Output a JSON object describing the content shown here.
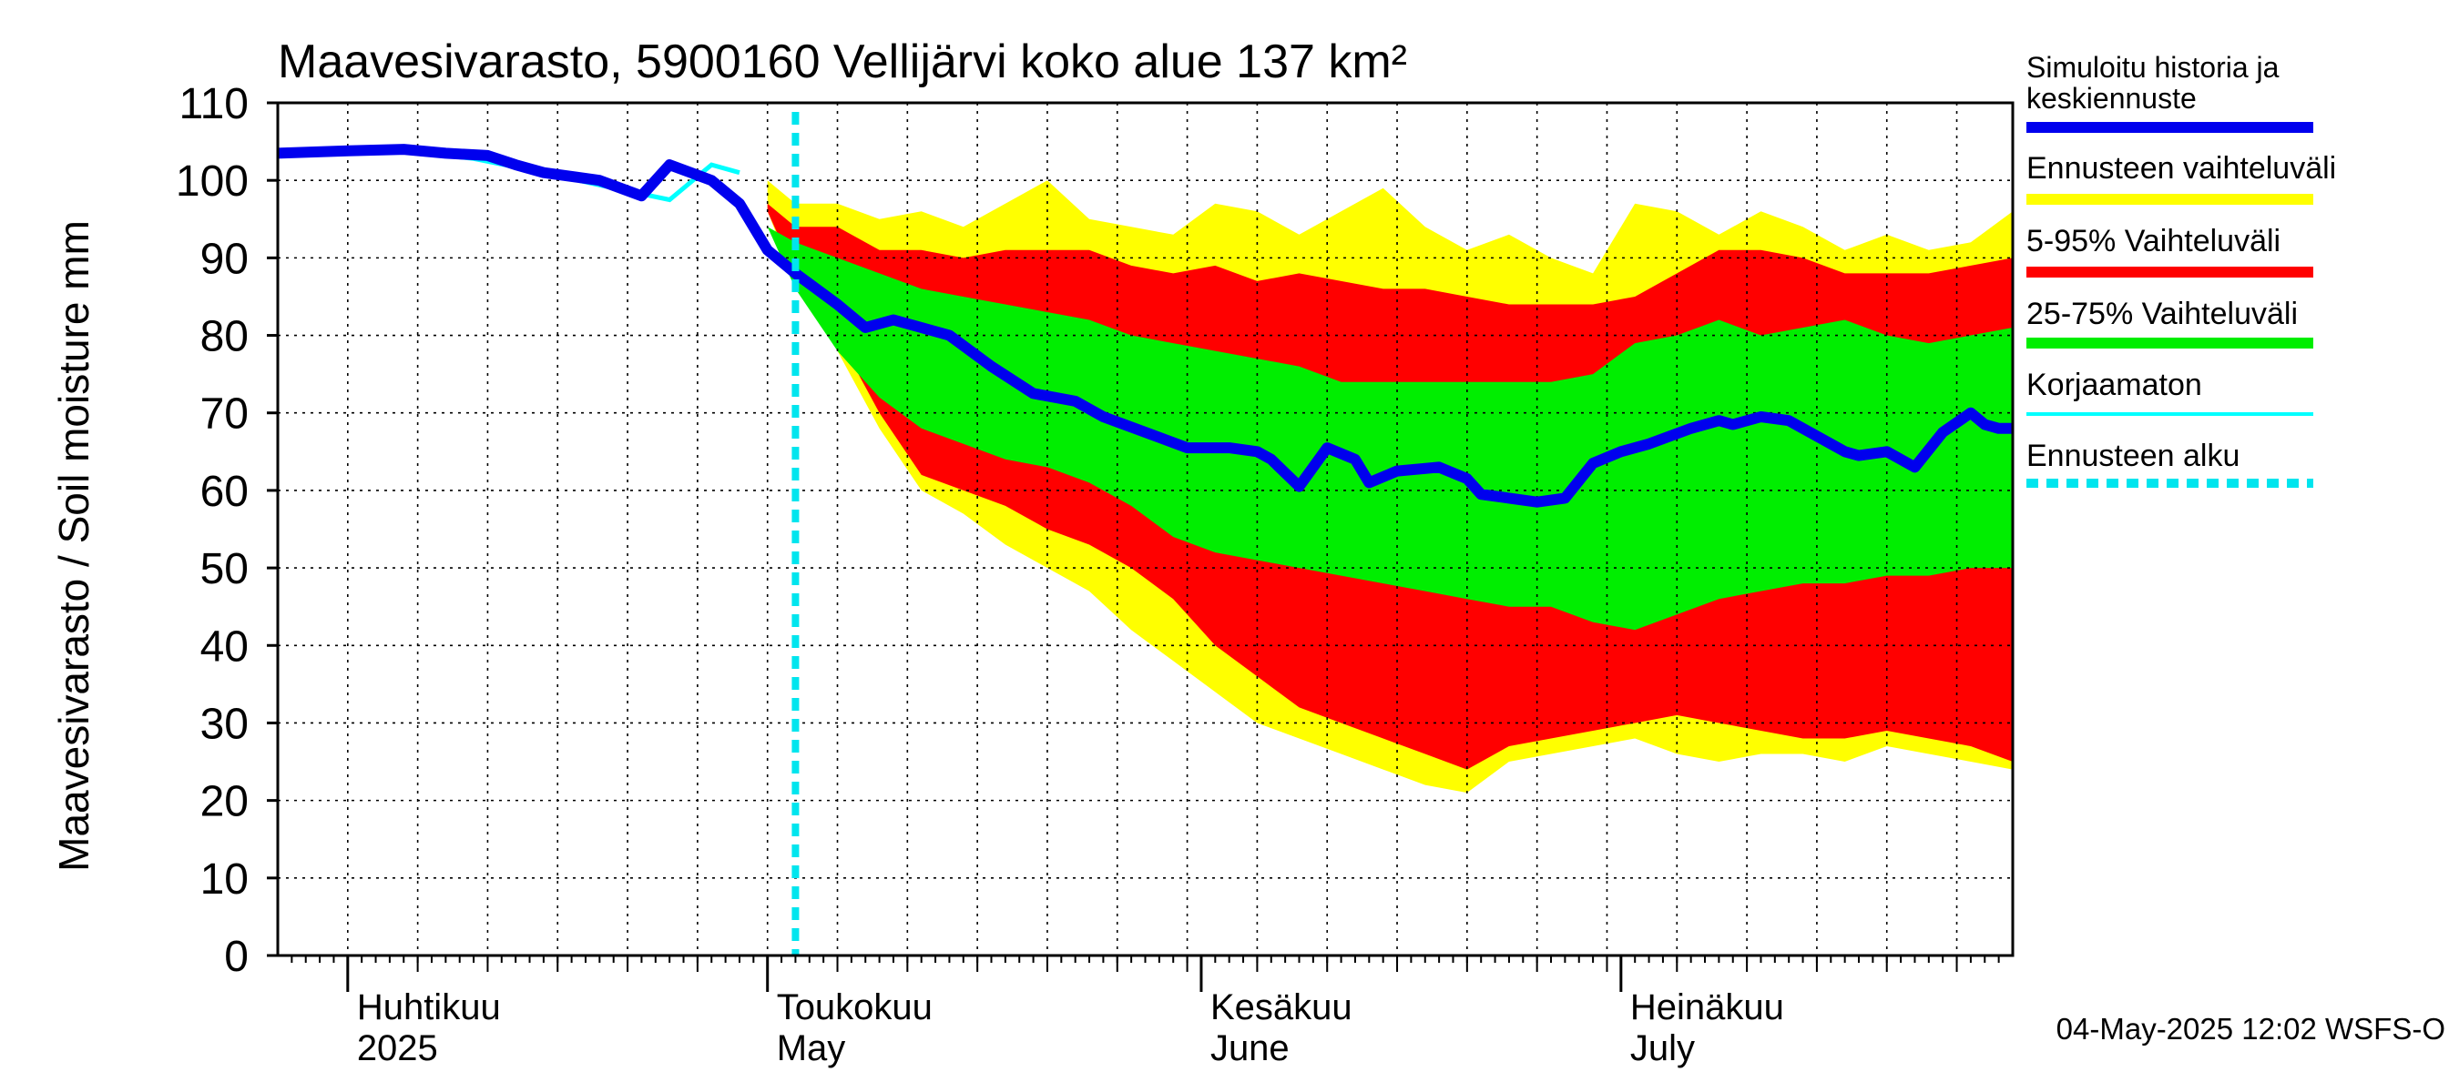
{
  "chart_data": {
    "type": "area",
    "title": "Maavesivarasto, 5900160 Vellijärvi koko alue 137 km²",
    "ylabel": "Maavesivarasto / Soil moisture   mm",
    "xlabel": "",
    "ylim": [
      0,
      110
    ],
    "yticks": [
      0,
      10,
      20,
      30,
      40,
      50,
      60,
      70,
      80,
      90,
      100,
      110
    ],
    "xlim": [
      "2025-03-27",
      "2025-07-29"
    ],
    "grid": true,
    "legend_position": "right",
    "x_month_labels": [
      {
        "date": "2025-04-01",
        "fi": "Huhtikuu",
        "en": "2025"
      },
      {
        "date": "2025-05-01",
        "fi": "Toukokuu",
        "en": "May"
      },
      {
        "date": "2025-06-01",
        "fi": "Kesäkuu",
        "en": "June"
      },
      {
        "date": "2025-07-01",
        "fi": "Heinäkuu",
        "en": "July"
      }
    ],
    "forecast_start": "2025-05-03",
    "timestamp": "04-May-2025 12:02 WSFS-O",
    "colors": {
      "full_range": "#ffff00",
      "p5_95": "#ff0000",
      "p25_75": "#00ee00",
      "median": "#0000ee",
      "uncorrected": "#00ffff",
      "forecast_start": "#00e5ee",
      "grid": "#000000"
    },
    "legend": [
      {
        "label": "Simuloitu historia ja keskiennuste",
        "key": "median"
      },
      {
        "label": "Ennusteen vaihteluväli",
        "key": "full_range"
      },
      {
        "label": "5-95% Vaihteluväli",
        "key": "p5_95"
      },
      {
        "label": "25-75% Vaihteluväli",
        "key": "p25_75"
      },
      {
        "label": "Korjaamaton",
        "key": "uncorrected"
      },
      {
        "label": "Ennusteen alku",
        "key": "forecast_start"
      }
    ],
    "series": [
      {
        "name": "Simuloitu historia ja keskiennuste",
        "x": [
          "2025-03-27",
          "2025-04-01",
          "2025-04-05",
          "2025-04-08",
          "2025-04-11",
          "2025-04-13",
          "2025-04-15",
          "2025-04-19",
          "2025-04-22",
          "2025-04-24",
          "2025-04-27",
          "2025-04-29",
          "2025-05-01",
          "2025-05-03",
          "2025-05-06",
          "2025-05-08",
          "2025-05-10",
          "2025-05-12",
          "2025-05-14",
          "2025-05-17",
          "2025-05-20",
          "2025-05-23",
          "2025-05-25",
          "2025-05-28",
          "2025-05-31",
          "2025-06-03",
          "2025-06-05",
          "2025-06-06",
          "2025-06-08",
          "2025-06-10",
          "2025-06-12",
          "2025-06-13",
          "2025-06-15",
          "2025-06-18",
          "2025-06-20",
          "2025-06-21",
          "2025-06-23",
          "2025-06-25",
          "2025-06-27",
          "2025-06-29",
          "2025-07-01",
          "2025-07-03",
          "2025-07-06",
          "2025-07-08",
          "2025-07-09",
          "2025-07-11",
          "2025-07-13",
          "2025-07-15",
          "2025-07-17",
          "2025-07-18",
          "2025-07-20",
          "2025-07-22",
          "2025-07-24",
          "2025-07-26",
          "2025-07-27",
          "2025-07-28",
          "2025-07-29"
        ],
        "values": [
          103.5,
          103.8,
          104.0,
          103.5,
          103.2,
          102.0,
          101.0,
          100.0,
          98.0,
          102.0,
          100.0,
          97.0,
          91.0,
          88.0,
          84.0,
          81.0,
          82.0,
          81.0,
          80.0,
          76.0,
          72.5,
          71.5,
          69.5,
          67.5,
          65.5,
          65.5,
          65.0,
          64.0,
          60.5,
          65.5,
          64.0,
          61.0,
          62.5,
          63.0,
          61.5,
          59.5,
          59.0,
          58.5,
          59.0,
          63.5,
          65.0,
          66.0,
          68.0,
          69.0,
          68.5,
          69.5,
          69.0,
          67.0,
          65.0,
          64.5,
          65.0,
          63.0,
          67.5,
          70.0,
          68.5,
          68.0,
          68.0
        ]
      },
      {
        "name": "Korjaamaton",
        "x": [
          "2025-03-27",
          "2025-04-05",
          "2025-04-10",
          "2025-04-15",
          "2025-04-20",
          "2025-04-24",
          "2025-04-27",
          "2025-04-29"
        ],
        "values": [
          103.8,
          103.8,
          102.8,
          101.0,
          99.0,
          97.5,
          102.0,
          101.0
        ]
      },
      {
        "name": "Ennusteen vaihteluväli",
        "x": [
          "2025-05-01",
          "2025-05-03",
          "2025-05-06",
          "2025-05-09",
          "2025-05-12",
          "2025-05-15",
          "2025-05-18",
          "2025-05-21",
          "2025-05-24",
          "2025-05-27",
          "2025-05-30",
          "2025-06-02",
          "2025-06-05",
          "2025-06-08",
          "2025-06-11",
          "2025-06-14",
          "2025-06-17",
          "2025-06-20",
          "2025-06-23",
          "2025-06-26",
          "2025-06-29",
          "2025-07-02",
          "2025-07-05",
          "2025-07-08",
          "2025-07-11",
          "2025-07-14",
          "2025-07-17",
          "2025-07-20",
          "2025-07-23",
          "2025-07-26",
          "2025-07-29"
        ],
        "upper": [
          100,
          97,
          97,
          95,
          96,
          94,
          97,
          100,
          95,
          94,
          93,
          97,
          96,
          93,
          96,
          99,
          94,
          91,
          93,
          90,
          88,
          97,
          96,
          93,
          96,
          94,
          91,
          93,
          91,
          92,
          96
        ],
        "lower": [
          96,
          87,
          78,
          68,
          60,
          57,
          53,
          50,
          47,
          42,
          38,
          34,
          30,
          28,
          26,
          24,
          22,
          21,
          25,
          26,
          27,
          28,
          26,
          25,
          26,
          26,
          25,
          27,
          26,
          25,
          24
        ]
      },
      {
        "name": "5-95% Vaihteluväli",
        "x": [
          "2025-05-01",
          "2025-05-03",
          "2025-05-06",
          "2025-05-09",
          "2025-05-12",
          "2025-05-15",
          "2025-05-18",
          "2025-05-21",
          "2025-05-24",
          "2025-05-27",
          "2025-05-30",
          "2025-06-02",
          "2025-06-05",
          "2025-06-08",
          "2025-06-11",
          "2025-06-14",
          "2025-06-17",
          "2025-06-20",
          "2025-06-23",
          "2025-06-26",
          "2025-06-29",
          "2025-07-02",
          "2025-07-05",
          "2025-07-08",
          "2025-07-11",
          "2025-07-14",
          "2025-07-17",
          "2025-07-20",
          "2025-07-23",
          "2025-07-26",
          "2025-07-29"
        ],
        "upper": [
          97,
          94,
          94,
          91,
          91,
          90,
          91,
          91,
          91,
          89,
          88,
          89,
          87,
          88,
          87,
          86,
          86,
          85,
          84,
          84,
          84,
          85,
          88,
          91,
          91,
          90,
          88,
          88,
          88,
          89,
          90
        ],
        "lower": [
          96,
          88,
          80,
          70,
          62,
          60,
          58,
          55,
          53,
          50,
          46,
          40,
          36,
          32,
          30,
          28,
          26,
          24,
          27,
          28,
          29,
          30,
          31,
          30,
          29,
          28,
          28,
          29,
          28,
          27,
          25
        ]
      },
      {
        "name": "25-75% Vaihteluväli",
        "x": [
          "2025-05-01",
          "2025-05-03",
          "2025-05-06",
          "2025-05-09",
          "2025-05-12",
          "2025-05-15",
          "2025-05-18",
          "2025-05-21",
          "2025-05-24",
          "2025-05-27",
          "2025-05-30",
          "2025-06-02",
          "2025-06-05",
          "2025-06-08",
          "2025-06-11",
          "2025-06-14",
          "2025-06-17",
          "2025-06-20",
          "2025-06-23",
          "2025-06-26",
          "2025-06-29",
          "2025-07-02",
          "2025-07-05",
          "2025-07-08",
          "2025-07-11",
          "2025-07-14",
          "2025-07-17",
          "2025-07-20",
          "2025-07-23",
          "2025-07-26",
          "2025-07-29"
        ],
        "upper": [
          94,
          92,
          90,
          88,
          86,
          85,
          84,
          83,
          82,
          80,
          79,
          78,
          77,
          76,
          74,
          74,
          74,
          74,
          74,
          74,
          75,
          79,
          80,
          82,
          80,
          81,
          82,
          80,
          79,
          80,
          81
        ],
        "lower": [
          94,
          86,
          78,
          72,
          68,
          66,
          64,
          63,
          61,
          58,
          54,
          52,
          51,
          50,
          49,
          48,
          47,
          46,
          45,
          45,
          43,
          42,
          44,
          46,
          47,
          48,
          48,
          49,
          49,
          50,
          50
        ]
      }
    ]
  }
}
